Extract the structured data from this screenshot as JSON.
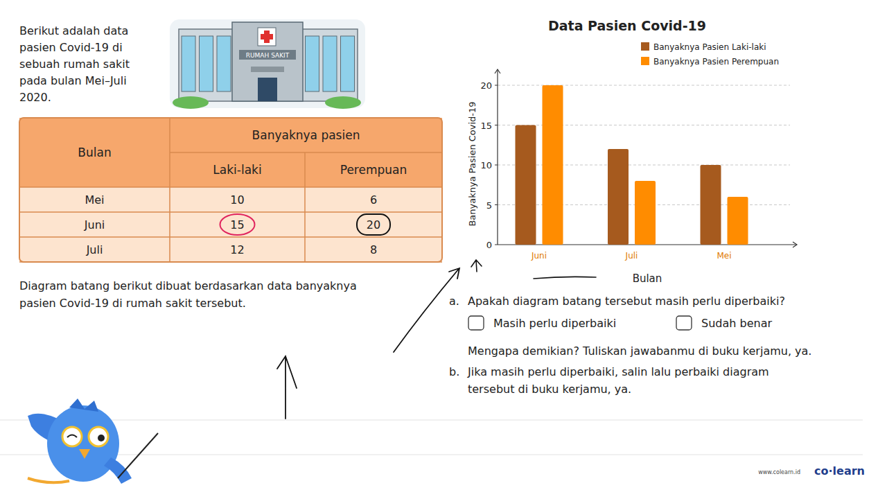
{
  "intro": [
    "Berikut adalah data",
    "pasien Covid-19 di",
    "sebuah rumah sakit",
    "pada bulan Mei–Juli",
    "2020."
  ],
  "hospital_sign": "RUMAH SAKIT",
  "table": {
    "header": [
      "Bulan",
      "Banyaknya pasien"
    ],
    "subheader": [
      "Laki-laki",
      "Perempuan"
    ],
    "rows": [
      [
        "Mei",
        10,
        6
      ],
      [
        "Juni",
        15,
        20
      ],
      [
        "Juli",
        12,
        8
      ]
    ]
  },
  "caption": [
    "Diagram batang berikut dibuat berdasarkan data banyaknya",
    "pasien Covid-19 di rumah sakit tersebut."
  ],
  "chart_data": {
    "type": "bar",
    "title": "Data Pasien Covid-19",
    "x_label": "Bulan",
    "y_label": "Banyaknya Pasien Covid-19",
    "categories": [
      "Juni",
      "Juli",
      "Mei"
    ],
    "series": [
      {
        "name": "Banyaknya Pasien Laki-laki",
        "color": "#a65a1e",
        "values": [
          15,
          12,
          10
        ]
      },
      {
        "name": "Banyaknya Pasien Perempuan",
        "color": "#ff8c00",
        "values": [
          20,
          8,
          6
        ]
      }
    ],
    "ylim": [
      0,
      22
    ],
    "yticks": [
      0,
      5,
      10,
      15,
      20
    ],
    "grid": true,
    "legend": "top-right"
  },
  "questions": {
    "a": {
      "label": "a.",
      "text": "Apakah diagram batang tersebut masih perlu diperbaiki?",
      "options": [
        "Masih perlu diperbaiki",
        "Sudah benar"
      ],
      "follow_up": "Mengapa demikian? Tuliskan jawabanmu di buku kerjamu, ya."
    },
    "b": {
      "label": "b.",
      "text": [
        "Jika masih perlu diperbaiki, salin lalu perbaiki diagram",
        "tersebut di buku kerjamu, ya."
      ]
    }
  },
  "footer": {
    "url": "www.colearn.id",
    "logo": "co·learn"
  }
}
